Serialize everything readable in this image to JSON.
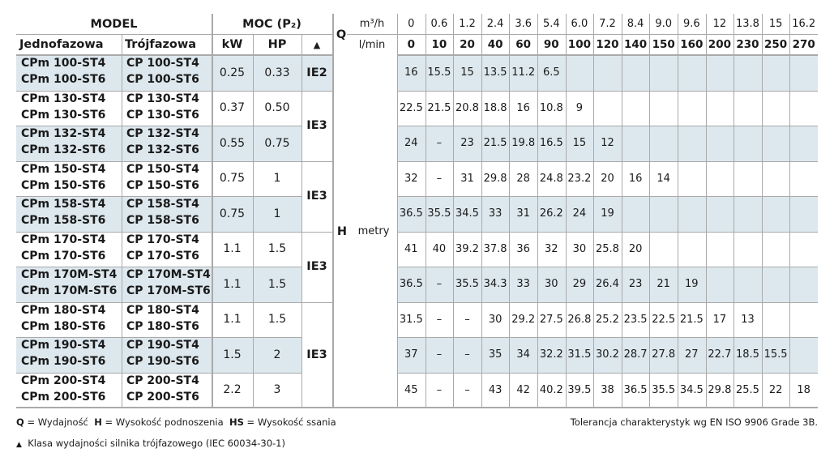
{
  "header": {
    "model": "MODEL",
    "power": "MOC (P₂)",
    "single_phase": "Jednofazowa",
    "three_phase": "Trójfazowa",
    "kw": "kW",
    "hp": "HP",
    "class_marker": "▲",
    "q_label": "Q",
    "q_unit_m3h": "m³/h",
    "q_unit_lmin": "l/min",
    "h_label": "H",
    "h_unit": "metry"
  },
  "flow_m3h": [
    "0",
    "0.6",
    "1.2",
    "2.4",
    "3.6",
    "5.4",
    "6.0",
    "7.2",
    "8.4",
    "9.0",
    "9.6",
    "12",
    "13.8",
    "15",
    "16.2"
  ],
  "flow_lmin": [
    "0",
    "10",
    "20",
    "40",
    "60",
    "90",
    "100",
    "120",
    "140",
    "150",
    "160",
    "200",
    "230",
    "250",
    "270"
  ],
  "rows": [
    {
      "single": [
        "CPm 100-ST4",
        "CPm 100-ST6"
      ],
      "three": [
        "CP 100-ST4",
        "CP 100-ST6"
      ],
      "kw": "0.25",
      "hp": "0.33",
      "shaded": true,
      "values": [
        "16",
        "15.5",
        "15",
        "13.5",
        "11.2",
        "6.5",
        "",
        "",
        "",
        "",
        "",
        "",
        "",
        "",
        ""
      ]
    },
    {
      "single": [
        "CPm 130-ST4",
        "CPm 130-ST6"
      ],
      "three": [
        "CP 130-ST4",
        "CP 130-ST6"
      ],
      "kw": "0.37",
      "hp": "0.50",
      "shaded": false,
      "values": [
        "22.5",
        "21.5",
        "20.8",
        "18.8",
        "16",
        "10.8",
        "9",
        "",
        "",
        "",
        "",
        "",
        "",
        "",
        ""
      ]
    },
    {
      "single": [
        "CPm 132-ST4",
        "CPm 132-ST6"
      ],
      "three": [
        "CP 132-ST4",
        "CP 132-ST6"
      ],
      "kw": "0.55",
      "hp": "0.75",
      "shaded": true,
      "values": [
        "24",
        "–",
        "23",
        "21.5",
        "19.8",
        "16.5",
        "15",
        "12",
        "",
        "",
        "",
        "",
        "",
        "",
        ""
      ]
    },
    {
      "single": [
        "CPm 150-ST4",
        "CPm 150-ST6"
      ],
      "three": [
        "CP 150-ST4",
        "CP 150-ST6"
      ],
      "kw": "0.75",
      "hp": "1",
      "shaded": false,
      "values": [
        "32",
        "–",
        "31",
        "29.8",
        "28",
        "24.8",
        "23.2",
        "20",
        "16",
        "14",
        "",
        "",
        "",
        "",
        ""
      ]
    },
    {
      "single": [
        "CPm 158-ST4",
        "CPm 158-ST6"
      ],
      "three": [
        "CP 158-ST4",
        "CP 158-ST6"
      ],
      "kw": "0.75",
      "hp": "1",
      "shaded": true,
      "values": [
        "36.5",
        "35.5",
        "34.5",
        "33",
        "31",
        "26.2",
        "24",
        "19",
        "",
        "",
        "",
        "",
        "",
        "",
        ""
      ]
    },
    {
      "single": [
        "CPm 170-ST4",
        "CPm 170-ST6"
      ],
      "three": [
        "CP 170-ST4",
        "CP 170-ST6"
      ],
      "kw": "1.1",
      "hp": "1.5",
      "shaded": false,
      "values": [
        "41",
        "40",
        "39.2",
        "37.8",
        "36",
        "32",
        "30",
        "25.8",
        "20",
        "",
        "",
        "",
        "",
        "",
        ""
      ]
    },
    {
      "single": [
        "CPm 170M-ST4",
        "CPm 170M-ST6"
      ],
      "three": [
        "CP 170M-ST4",
        "CP 170M-ST6"
      ],
      "kw": "1.1",
      "hp": "1.5",
      "shaded": true,
      "values": [
        "36.5",
        "–",
        "35.5",
        "34.3",
        "33",
        "30",
        "29",
        "26.4",
        "23",
        "21",
        "19",
        "",
        "",
        "",
        ""
      ]
    },
    {
      "single": [
        "CPm 180-ST4",
        "CPm 180-ST6"
      ],
      "three": [
        "CP 180-ST4",
        "CP 180-ST6"
      ],
      "kw": "1.1",
      "hp": "1.5",
      "shaded": false,
      "values": [
        "31.5",
        "–",
        "–",
        "30",
        "29.2",
        "27.5",
        "26.8",
        "25.2",
        "23.5",
        "22.5",
        "21.5",
        "17",
        "13",
        "",
        ""
      ]
    },
    {
      "single": [
        "CPm 190-ST4",
        "CPm 190-ST6"
      ],
      "three": [
        "CP 190-ST4",
        "CP 190-ST6"
      ],
      "kw": "1.5",
      "hp": "2",
      "shaded": true,
      "values": [
        "37",
        "–",
        "–",
        "35",
        "34",
        "32.2",
        "31.5",
        "30.2",
        "28.7",
        "27.8",
        "27",
        "22.7",
        "18.5",
        "15.5",
        ""
      ]
    },
    {
      "single": [
        "CPm 200-ST4",
        "CPm 200-ST6"
      ],
      "three": [
        "CP 200-ST4",
        "CP 200-ST6"
      ],
      "kw": "2.2",
      "hp": "3",
      "shaded": false,
      "values": [
        "45",
        "–",
        "–",
        "43",
        "42",
        "40.2",
        "39.5",
        "38",
        "36.5",
        "35.5",
        "34.5",
        "29.8",
        "25.5",
        "22",
        "18"
      ]
    }
  ],
  "ie_classes": [
    {
      "label": "IE2",
      "first_row": 0,
      "rows": 1
    },
    {
      "label": "IE3",
      "first_row": 1,
      "rows": 2
    },
    {
      "label": "IE3",
      "first_row": 3,
      "rows": 2
    },
    {
      "label": "IE3",
      "first_row": 5,
      "rows": 2
    },
    {
      "label": "IE3",
      "first_row": 7,
      "rows": 3
    }
  ],
  "footer": {
    "q_key": "Q",
    "q_text": "= Wydajność",
    "h_key": "H",
    "h_text": "= Wysokość podnoszenia",
    "hs_key": "HS",
    "hs_text": "= Wysokość ssania",
    "tolerance": "Tolerancja charakterystyk wg EN ISO 9906 Grade 3B.",
    "class_marker": "▲",
    "class_note": "Klasa wydajności silnika trójfazowego (IEC 60034-30-1)"
  },
  "colors": {
    "shade": "#dde8ee",
    "grid": "#a9a9a9",
    "text": "#1a1a1a"
  }
}
